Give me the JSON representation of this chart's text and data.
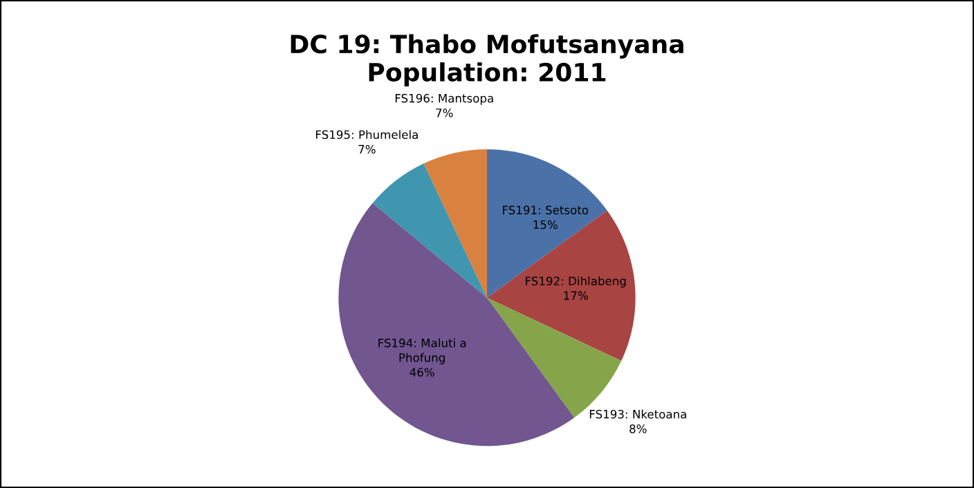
{
  "chart_data": {
    "type": "pie",
    "title": "DC 19: Thabo Mofutsanyana\nPopulation: 2011",
    "categories": [
      "FS191: Setsoto",
      "FS192: Dihlabeng",
      "FS193: Nketoana",
      "FS194: Maluti a Phofung",
      "FS195: Phumelela",
      "FS196: Mantsopa"
    ],
    "values": [
      15,
      17,
      8,
      46,
      7,
      7
    ],
    "value_labels": [
      "15%",
      "17%",
      "8%",
      "46%",
      "7%",
      "7%"
    ],
    "colors": [
      "#4a72a8",
      "#a84442",
      "#86a44a",
      "#715690",
      "#4096ae",
      "#d98240"
    ],
    "legend": false
  }
}
